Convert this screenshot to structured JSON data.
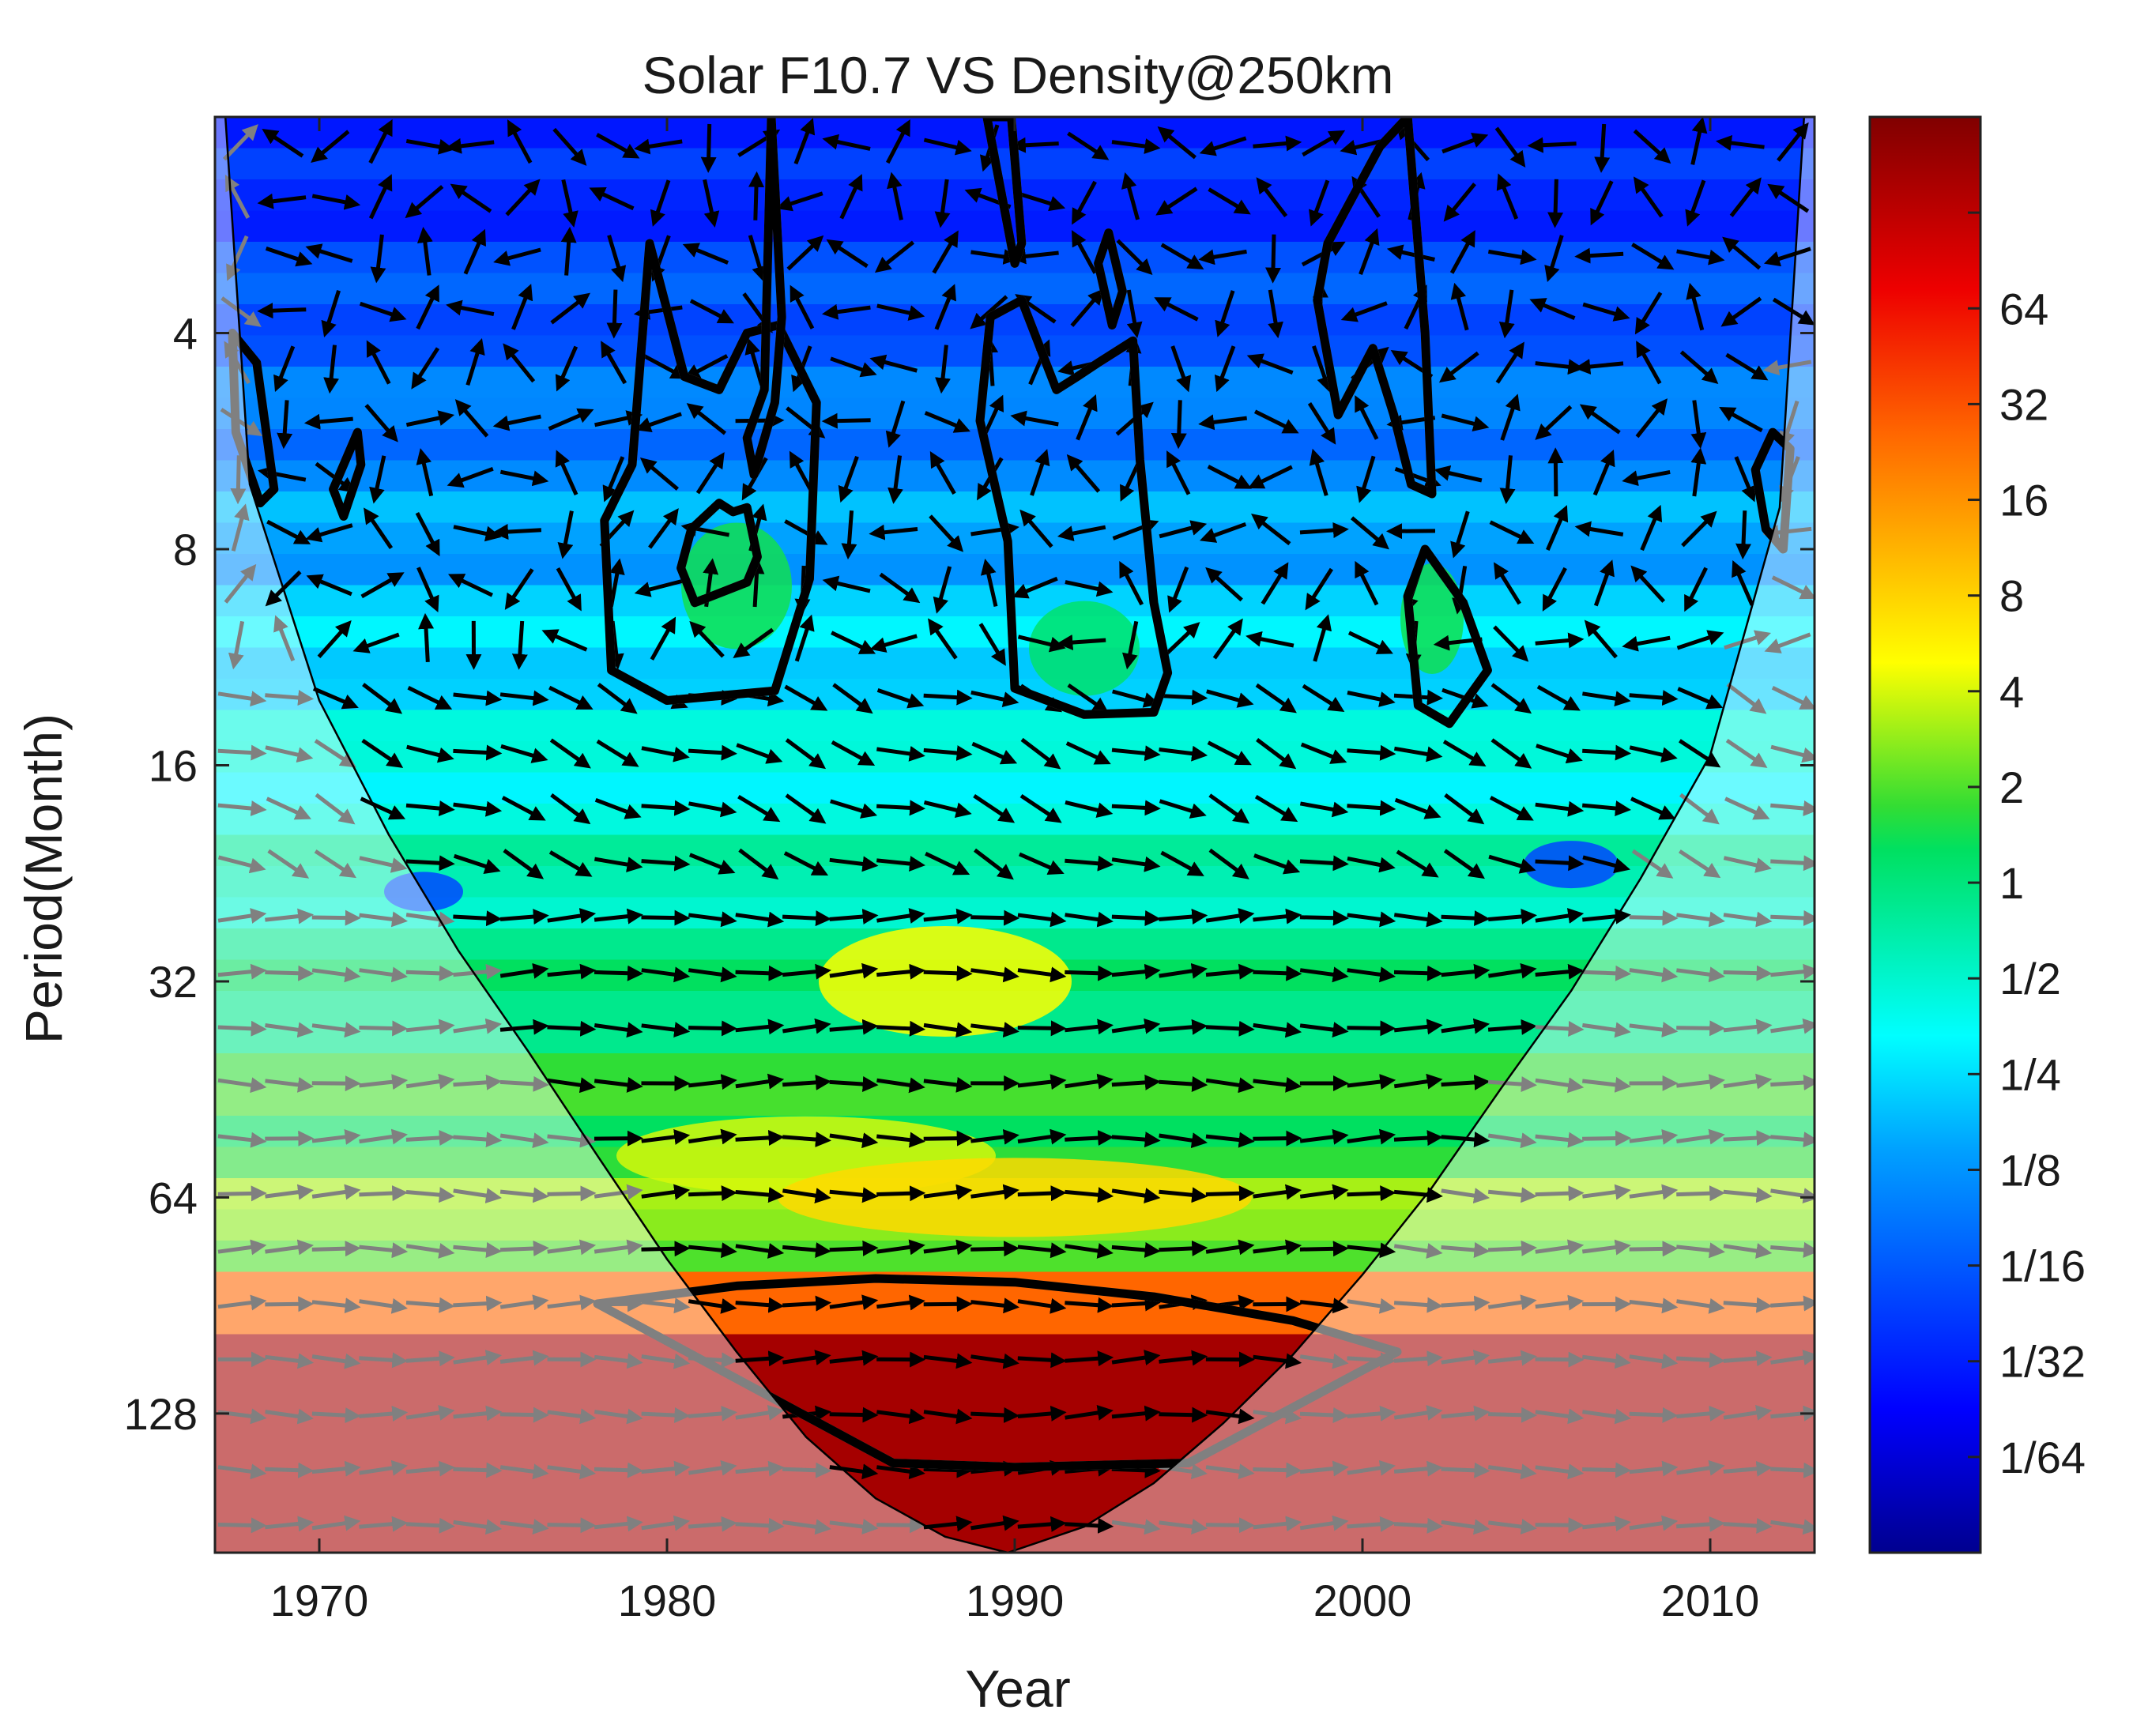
{
  "chart_data": {
    "type": "heatmap",
    "title": "Solar F10.7 VS Density@250km",
    "xlabel": "Year",
    "ylabel": "Period(Month)",
    "xlim": [
      1967,
      2013
    ],
    "ylim": [
      2,
      200
    ],
    "y_scale": "log2",
    "y_reversed": true,
    "grid": false,
    "x_ticks": [
      1970,
      1980,
      1990,
      2000,
      2010
    ],
    "y_ticks": [
      4,
      8,
      16,
      32,
      64,
      128
    ],
    "colorbar": {
      "scale": "log2",
      "range": [
        0.0078125,
        256
      ],
      "ticks": [
        0.015625,
        0.03125,
        0.0625,
        0.125,
        0.25,
        0.5,
        1,
        2,
        4,
        8,
        16,
        32,
        64
      ],
      "tick_labels": [
        "1/64",
        "1/32",
        "1/16",
        "1/8",
        "1/4",
        "1/2",
        "1",
        "2",
        "4",
        "8",
        "16",
        "32",
        "64"
      ],
      "colormap": "jet"
    },
    "cone_of_influence": {
      "x": [
        1967.3,
        1968,
        1970,
        1972,
        1974,
        1976,
        1978,
        1980,
        1982,
        1984,
        1986,
        1988,
        1989.8,
        1992,
        1994,
        1996,
        1998,
        2000,
        2002,
        2004,
        2006,
        2008,
        2010,
        2012,
        2012.7
      ],
      "period": [
        2,
        6.5,
        13,
        20,
        29,
        40,
        56,
        78,
        105,
        138,
        168,
        190,
        200,
        184,
        160,
        132,
        106,
        82,
        62,
        45,
        33,
        23,
        15.5,
        7,
        2
      ]
    },
    "significance_contours": [
      {
        "x": [
          1967.5,
          1968.2,
          1968.7,
          1968.3,
          1967.6,
          1967.5
        ],
        "period": [
          4.0,
          4.4,
          6.6,
          6.9,
          5.5,
          4.0
        ]
      },
      {
        "x": [
          1970.4,
          1971.1,
          1971.2,
          1970.7,
          1970.4
        ],
        "period": [
          6.6,
          5.5,
          6.1,
          7.2,
          6.6
        ]
      },
      {
        "x": [
          1978.2,
          1979.0,
          1979.5,
          1980.5,
          1981.5,
          1982.3,
          1983.2,
          1984.3,
          1984.1,
          1983.1,
          1980.0,
          1978.4,
          1978.2
        ],
        "period": [
          7.3,
          6.1,
          3.0,
          4.6,
          4.8,
          4.0,
          3.9,
          5.0,
          8.8,
          12.6,
          13.0,
          11.8,
          7.3
        ]
      },
      {
        "x": [
          1980.4,
          1980.7,
          1981.5,
          1981.9,
          1982.3,
          1982.6,
          1982.3,
          1980.8,
          1980.4
        ],
        "period": [
          8.5,
          7.5,
          6.9,
          7.1,
          7.0,
          8.2,
          8.9,
          9.5,
          8.5
        ]
      },
      {
        "x": [
          1982.3,
          1982.8,
          1983.0,
          1983.3,
          1983.1,
          1982.5,
          1982.3
        ],
        "period": [
          5.6,
          4.8,
          2.0,
          3.8,
          5.0,
          6.3,
          5.6
        ]
      },
      {
        "x": [
          1989.0,
          1989.3,
          1990.2,
          1991.2,
          1991.8,
          1992.4,
          1993.4,
          1993.6,
          1994.0,
          1994.4,
          1994.0,
          1992.0,
          1990.0,
          1989.8,
          1989.0
        ],
        "period": [
          5.3,
          3.8,
          3.6,
          4.8,
          4.6,
          4.4,
          4.1,
          6.0,
          9.5,
          11.9,
          13.5,
          13.6,
          12.5,
          7.8,
          5.3
        ]
      },
      {
        "x": [
          1989.2,
          1989.9,
          1990.2,
          1990.0,
          1989.2
        ],
        "period": [
          2.0,
          2.0,
          3.0,
          3.2,
          2.0
        ]
      },
      {
        "x": [
          1992.4,
          1992.7,
          1993.1,
          1992.8,
          1992.4
        ],
        "period": [
          3.2,
          2.9,
          3.5,
          3.9,
          3.2
        ]
      },
      {
        "x": [
          1998.7,
          1999.0,
          2000.5,
          2001.3,
          2001.8,
          2002.0,
          2001.4,
          2000.9,
          2000.3,
          1999.3,
          1998.7
        ],
        "period": [
          3.6,
          3.0,
          2.2,
          2.0,
          4.0,
          6.7,
          6.5,
          5.2,
          4.2,
          5.2,
          3.6
        ]
      },
      {
        "x": [
          2001.3,
          2001.8,
          2002.9,
          2003.6,
          2002.5,
          2001.6,
          2001.3
        ],
        "period": [
          9.3,
          8.0,
          9.5,
          11.8,
          14.0,
          13.2,
          9.3
        ]
      },
      {
        "x": [
          2011.3,
          2011.8,
          2012.3,
          2012.1,
          2011.6,
          2011.3
        ],
        "period": [
          6.2,
          5.5,
          5.8,
          8.0,
          7.5,
          6.2
        ]
      },
      {
        "x": [
          1978.0,
          1982.0,
          1986.0,
          1990.0,
          1994.0,
          1998.0,
          2001.0,
          1995.0,
          1990.0,
          1986.5,
          1978.0
        ],
        "period": [
          90,
          85,
          83,
          84,
          88,
          95,
          105,
          150,
          152,
          150,
          90
        ]
      }
    ],
    "arrow_convention": "right = in-phase, left = anti-phase"
  }
}
